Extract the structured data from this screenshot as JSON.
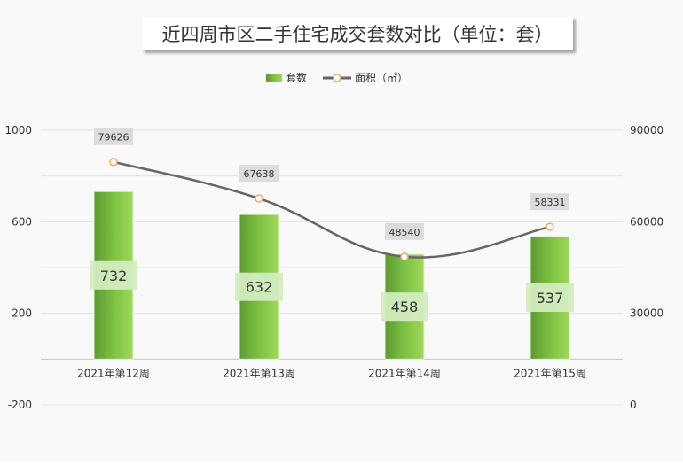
{
  "chart_data": {
    "type": "bar",
    "title": "近四周市区二手住宅成交套数对比（单位：套）",
    "categories": [
      "2021年第12周",
      "2021年第13周",
      "2021年第14周",
      "2021年第15周"
    ],
    "series": [
      {
        "name": "套数",
        "type": "bar",
        "axis": "left",
        "values": [
          732,
          632,
          458,
          537
        ],
        "color": "#7dc142"
      },
      {
        "name": "面积（㎡）",
        "type": "line",
        "axis": "right",
        "values": [
          79626,
          67638,
          48540,
          58331
        ],
        "color": "#666666",
        "marker_color": "#f0a868"
      }
    ],
    "y_left": {
      "range": [
        -200,
        1000
      ],
      "ticks": [
        "-200",
        "200",
        "600",
        "1000"
      ]
    },
    "y_right": {
      "range": [
        0,
        90000
      ],
      "ticks": [
        "0",
        "30000",
        "60000",
        "90000"
      ]
    },
    "grid": true,
    "legend_position": "top-center"
  }
}
